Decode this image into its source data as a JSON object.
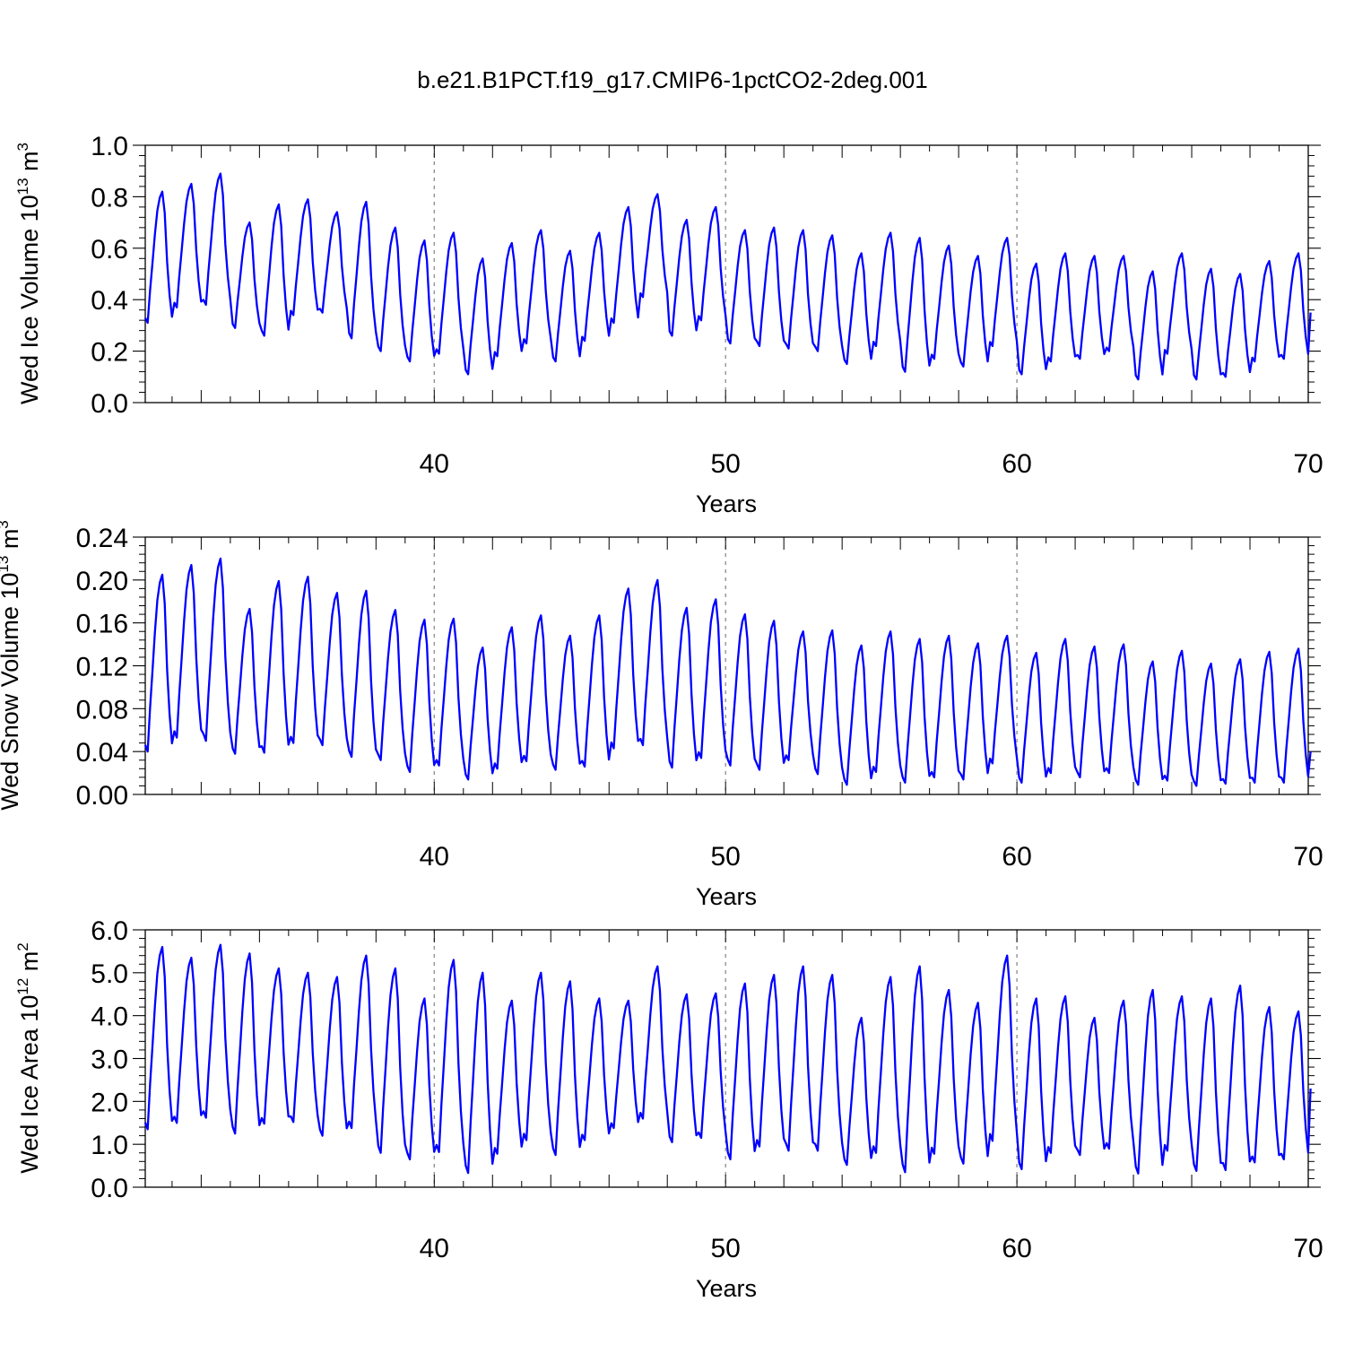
{
  "title": "b.e21.B1PCT.f19_g17.CMIP6-1pctCO2-2deg.001",
  "chart_data": [
    {
      "type": "line",
      "ylabel_main": "Wed Ice Volume 10",
      "ylabel_exp": "13",
      "ylabel_unit": " m",
      "ylabel_unit_exp": "3",
      "xlabel": "Years",
      "xlim": [
        30.08,
        70.0
      ],
      "ylim": [
        0.0,
        1.0
      ],
      "yticks": [
        0.0,
        0.2,
        0.4,
        0.6,
        0.8,
        1.0
      ],
      "ytick_labels": [
        "0.0",
        "0.2",
        "0.4",
        "0.6",
        "0.8",
        "1.0"
      ],
      "xticks": [
        40,
        50,
        60,
        70
      ],
      "xtick_labels": [
        "40",
        "50",
        "60",
        "70"
      ],
      "gridlines_x": [
        40,
        50,
        60
      ],
      "color": "#0000ff",
      "series": [
        {
          "name": "Wed Ice Volume",
          "start_year": 30.08,
          "annual_min": [
            0.31,
            0.37,
            0.38,
            0.29,
            0.26,
            0.34,
            0.35,
            0.25,
            0.2,
            0.16,
            0.19,
            0.11,
            0.18,
            0.23,
            0.16,
            0.24,
            0.31,
            0.41,
            0.26,
            0.32,
            0.23,
            0.22,
            0.21,
            0.2,
            0.15,
            0.22,
            0.12,
            0.17,
            0.14,
            0.22,
            0.11,
            0.16,
            0.17,
            0.2,
            0.09,
            0.19,
            0.09,
            0.1,
            0.16,
            0.17
          ],
          "annual_max": [
            0.82,
            0.85,
            0.89,
            0.7,
            0.77,
            0.79,
            0.74,
            0.78,
            0.68,
            0.63,
            0.66,
            0.56,
            0.62,
            0.67,
            0.59,
            0.66,
            0.76,
            0.81,
            0.71,
            0.76,
            0.67,
            0.68,
            0.67,
            0.65,
            0.58,
            0.66,
            0.64,
            0.61,
            0.57,
            0.64,
            0.54,
            0.58,
            0.57,
            0.57,
            0.51,
            0.58,
            0.52,
            0.5,
            0.55,
            0.58
          ],
          "end_value": 0.35
        }
      ]
    },
    {
      "type": "line",
      "ylabel_main": "Wed Snow Volume 10",
      "ylabel_exp": "13",
      "ylabel_unit": " m",
      "ylabel_unit_exp": "3",
      "xlabel": "Years",
      "xlim": [
        30.08,
        70.0
      ],
      "ylim": [
        0.0,
        0.24
      ],
      "yticks": [
        0.0,
        0.04,
        0.08,
        0.12,
        0.16,
        0.2,
        0.24
      ],
      "ytick_labels": [
        "0.00",
        "0.04",
        "0.08",
        "0.12",
        "0.16",
        "0.20",
        "0.24"
      ],
      "xticks": [
        40,
        50,
        60,
        70
      ],
      "xtick_labels": [
        "40",
        "50",
        "60",
        "70"
      ],
      "gridlines_x": [
        40,
        50,
        60
      ],
      "color": "#0000ff",
      "series": [
        {
          "name": "Wed Snow Volume",
          "start_year": 30.08,
          "annual_min": [
            0.04,
            0.053,
            0.05,
            0.038,
            0.039,
            0.048,
            0.046,
            0.035,
            0.032,
            0.021,
            0.027,
            0.014,
            0.024,
            0.031,
            0.023,
            0.026,
            0.043,
            0.046,
            0.025,
            0.034,
            0.027,
            0.023,
            0.032,
            0.019,
            0.009,
            0.021,
            0.011,
            0.016,
            0.014,
            0.029,
            0.011,
            0.02,
            0.016,
            0.02,
            0.009,
            0.013,
            0.008,
            0.01,
            0.011,
            0.011
          ],
          "annual_max": [
            0.205,
            0.214,
            0.22,
            0.173,
            0.199,
            0.203,
            0.188,
            0.19,
            0.172,
            0.163,
            0.164,
            0.137,
            0.156,
            0.167,
            0.148,
            0.167,
            0.192,
            0.2,
            0.174,
            0.182,
            0.168,
            0.162,
            0.152,
            0.153,
            0.139,
            0.152,
            0.145,
            0.148,
            0.141,
            0.148,
            0.132,
            0.145,
            0.138,
            0.14,
            0.124,
            0.134,
            0.122,
            0.126,
            0.133,
            0.136
          ],
          "end_value": 0.04
        }
      ]
    },
    {
      "type": "line",
      "ylabel_main": "Wed Ice Area 10",
      "ylabel_exp": "12",
      "ylabel_unit": " m",
      "ylabel_unit_exp": "2",
      "xlabel": "Years",
      "xlim": [
        30.08,
        70.0
      ],
      "ylim": [
        0.0,
        6.0
      ],
      "yticks": [
        0.0,
        1.0,
        2.0,
        3.0,
        4.0,
        5.0,
        6.0
      ],
      "ytick_labels": [
        "0.0",
        "1.0",
        "2.0",
        "3.0",
        "4.0",
        "5.0",
        "6.0"
      ],
      "xticks": [
        40,
        50,
        60,
        70
      ],
      "xtick_labels": [
        "40",
        "50",
        "60",
        "70"
      ],
      "gridlines_x": [
        40,
        50,
        60
      ],
      "color": "#0000ff",
      "series": [
        {
          "name": "Wed Ice Area",
          "start_year": 30.08,
          "annual_min": [
            1.35,
            1.5,
            1.62,
            1.25,
            1.48,
            1.52,
            1.2,
            1.38,
            0.8,
            0.65,
            0.82,
            0.33,
            0.78,
            1.1,
            0.75,
            1.1,
            1.38,
            1.6,
            1.05,
            1.15,
            0.65,
            0.95,
            0.85,
            0.85,
            0.52,
            0.8,
            0.35,
            0.78,
            0.55,
            1.08,
            0.42,
            0.8,
            0.75,
            0.9,
            0.32,
            0.85,
            0.38,
            0.4,
            0.58,
            0.65
          ],
          "annual_max": [
            5.6,
            5.35,
            5.65,
            5.45,
            5.1,
            5.0,
            4.9,
            5.4,
            5.1,
            4.4,
            5.3,
            5.0,
            4.35,
            5.0,
            4.8,
            4.4,
            4.35,
            5.15,
            4.5,
            4.52,
            4.75,
            4.95,
            5.15,
            4.95,
            3.95,
            4.9,
            5.15,
            4.6,
            4.3,
            5.4,
            4.4,
            4.45,
            3.95,
            4.35,
            4.6,
            4.45,
            4.4,
            4.7,
            4.2,
            4.1
          ],
          "end_value": 2.3
        }
      ]
    }
  ]
}
